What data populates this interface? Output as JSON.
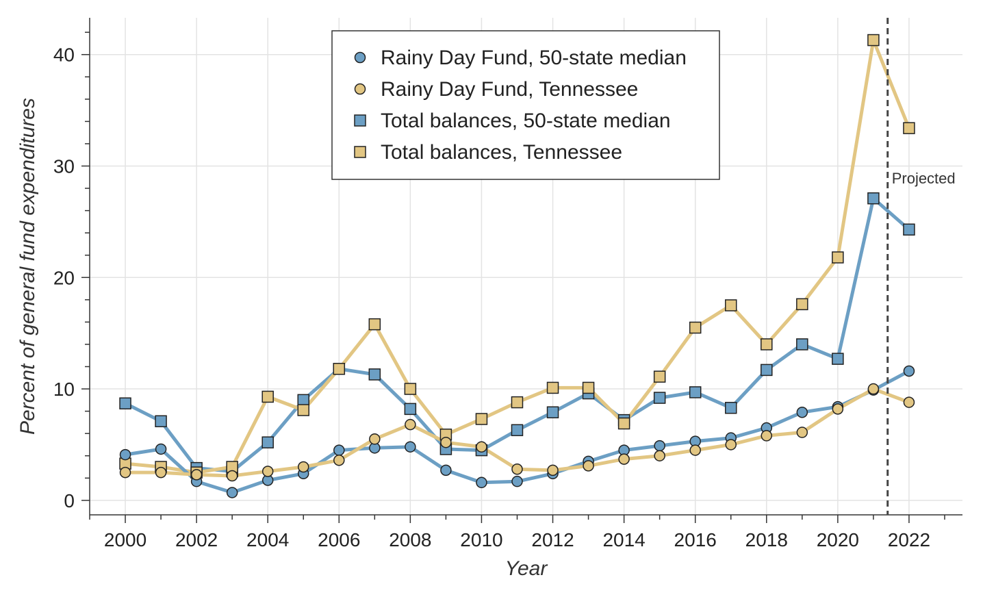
{
  "chart_data": {
    "type": "line",
    "title": "",
    "xlabel": "Year",
    "ylabel": "Percent of general fund expenditures",
    "x": [
      2000,
      2001,
      2002,
      2003,
      2004,
      2005,
      2006,
      2007,
      2008,
      2009,
      2010,
      2011,
      2012,
      2013,
      2014,
      2015,
      2016,
      2017,
      2018,
      2019,
      2020,
      2021,
      2022
    ],
    "xlim": [
      1999,
      2023.5
    ],
    "ylim": [
      -1.3,
      43.3
    ],
    "xticks": [
      "2000",
      "2002",
      "2004",
      "2006",
      "2008",
      "2010",
      "2012",
      "2014",
      "2016",
      "2018",
      "2020",
      "2022"
    ],
    "yticks": [
      "0",
      "10",
      "20",
      "30",
      "40"
    ],
    "grid": true,
    "legend_position": "top-center",
    "colors": {
      "blue": "#6c9fc4",
      "gold": "#e2c683"
    },
    "series": [
      {
        "name": "Rainy Day Fund, 50-state median",
        "marker": "circle",
        "color": "blue",
        "values": [
          4.1,
          4.6,
          1.7,
          0.7,
          1.8,
          2.4,
          4.5,
          4.7,
          4.8,
          2.7,
          1.6,
          1.7,
          2.4,
          3.5,
          4.5,
          4.9,
          5.3,
          5.6,
          6.5,
          7.9,
          8.4,
          9.9,
          11.6
        ]
      },
      {
        "name": "Rainy Day Fund, Tennessee",
        "marker": "circle",
        "color": "gold",
        "values": [
          2.5,
          2.5,
          2.3,
          2.2,
          2.6,
          3.0,
          3.6,
          5.5,
          6.8,
          5.2,
          4.8,
          2.8,
          2.7,
          3.1,
          3.7,
          4.0,
          4.5,
          5.0,
          5.8,
          6.1,
          8.2,
          10.0,
          8.8
        ]
      },
      {
        "name": "Total balances, 50-state median",
        "marker": "square",
        "color": "blue",
        "values": [
          8.7,
          7.1,
          2.9,
          2.6,
          5.2,
          9.0,
          11.8,
          11.3,
          8.2,
          4.6,
          4.5,
          6.3,
          7.9,
          9.6,
          7.2,
          9.2,
          9.7,
          8.3,
          11.7,
          14.0,
          12.7,
          27.1,
          24.3
        ]
      },
      {
        "name": "Total balances, Tennessee",
        "marker": "square",
        "color": "gold",
        "values": [
          3.3,
          3.0,
          2.5,
          3.0,
          9.3,
          8.1,
          11.8,
          15.8,
          10.0,
          5.9,
          7.3,
          8.8,
          10.1,
          10.1,
          6.9,
          11.1,
          15.5,
          17.5,
          14.0,
          17.6,
          21.8,
          41.3,
          33.4
        ]
      }
    ],
    "annotations": [
      {
        "type": "vline",
        "x": 2021.4,
        "style": "dashed",
        "label": "Projected"
      }
    ]
  }
}
